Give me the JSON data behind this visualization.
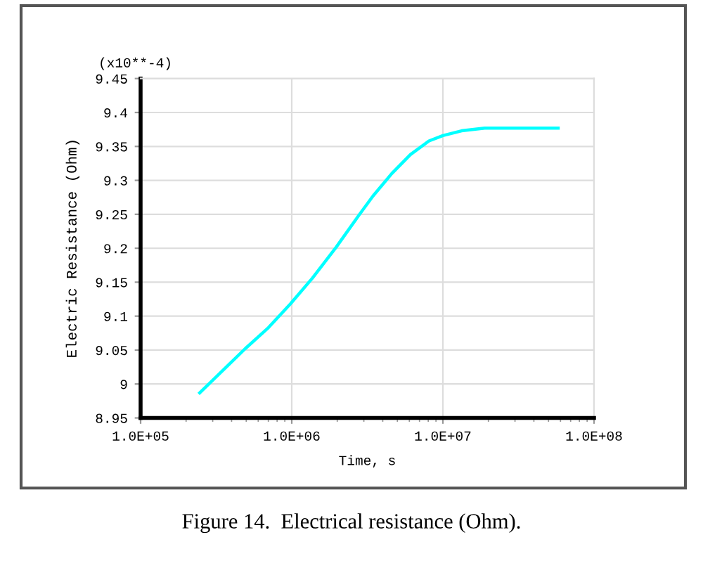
{
  "chart_data": {
    "type": "line",
    "xlabel": "Time, s",
    "ylabel": "Electric Resistance (Ohm)",
    "log": "x",
    "grid": true,
    "marker": "none",
    "line_style": "solid",
    "x": [
      246000,
      492000,
      701000,
      980000,
      1370000,
      1960000,
      2790000,
      3450000,
      4590000,
      6100000,
      8090000,
      10000000,
      13300000,
      18900000,
      29000000,
      57900000
    ],
    "series": [
      {
        "color": "#00ffff",
        "values": [
          8.987,
          9.052,
          9.083,
          9.118,
          9.156,
          9.201,
          9.249,
          9.277,
          9.31,
          9.338,
          9.358,
          9.366,
          9.373,
          9.377,
          9.377,
          9.377
        ]
      }
    ],
    "xlim": [
      100000,
      100000000
    ],
    "xticks": [
      {
        "value": 100000,
        "label": "1.0E+05"
      },
      {
        "value": 1000000,
        "label": "1.0E+06"
      },
      {
        "value": 10000000,
        "label": "1.0E+07"
      },
      {
        "value": 100000000,
        "label": "1.0E+08"
      }
    ],
    "ylim": [
      8.95,
      9.45
    ],
    "yticks": [
      8.95,
      9,
      9.05,
      9.1,
      9.15,
      9.2,
      9.25,
      9.3,
      9.35,
      9.4,
      9.45
    ],
    "annotations": [
      "(x10**-4)",
      "Figure 14.  Electrical resistance (Ohm)."
    ]
  }
}
